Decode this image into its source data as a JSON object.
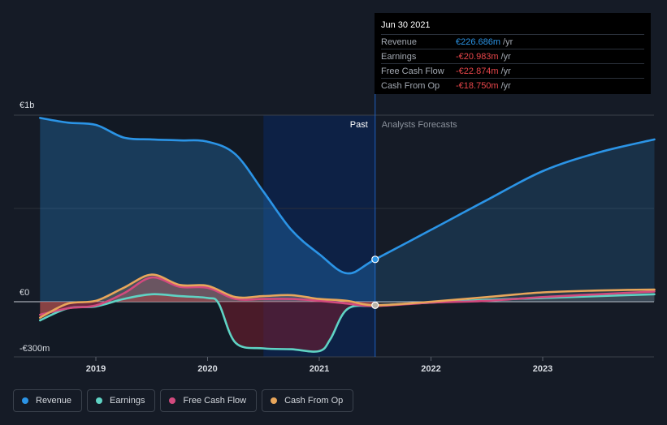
{
  "chart_data": {
    "type": "area",
    "y_unit": "€m",
    "y_tick_labels": [
      "€1b",
      "€0",
      "-€300m"
    ],
    "ylim": [
      -300,
      1000
    ],
    "x_tick_labels": [
      "2019",
      "2020",
      "2021",
      "2022",
      "2023"
    ],
    "xlim": [
      2018.5,
      2024.0
    ],
    "past_label": "Past",
    "forecast_label": "Analysts Forecasts",
    "past_end": 2021.5,
    "highlight_start": 2020.5,
    "series": [
      {
        "name": "Revenue",
        "color": "#2b94e6",
        "points": [
          [
            2018.5,
            985
          ],
          [
            2018.75,
            960
          ],
          [
            2019.0,
            948
          ],
          [
            2019.25,
            880
          ],
          [
            2019.5,
            870
          ],
          [
            2019.75,
            865
          ],
          [
            2020.0,
            858
          ],
          [
            2020.25,
            790
          ],
          [
            2020.5,
            590
          ],
          [
            2020.75,
            385
          ],
          [
            2021.0,
            255
          ],
          [
            2021.25,
            152
          ],
          [
            2021.5,
            227
          ],
          [
            2022.0,
            385
          ],
          [
            2022.5,
            545
          ],
          [
            2023.0,
            700
          ],
          [
            2023.5,
            800
          ],
          [
            2024.0,
            870
          ]
        ]
      },
      {
        "name": "Earnings",
        "color": "#5fd3c4",
        "points": [
          [
            2018.5,
            -100
          ],
          [
            2018.75,
            -35
          ],
          [
            2019.0,
            -25
          ],
          [
            2019.25,
            15
          ],
          [
            2019.5,
            40
          ],
          [
            2019.75,
            30
          ],
          [
            2020.0,
            20
          ],
          [
            2020.1,
            -10
          ],
          [
            2020.25,
            -220
          ],
          [
            2020.5,
            -250
          ],
          [
            2020.75,
            -255
          ],
          [
            2021.0,
            -265
          ],
          [
            2021.1,
            -200
          ],
          [
            2021.25,
            -40
          ],
          [
            2021.5,
            -21
          ],
          [
            2022.0,
            -5
          ],
          [
            2022.5,
            10
          ],
          [
            2023.0,
            20
          ],
          [
            2023.5,
            30
          ],
          [
            2024.0,
            40
          ]
        ]
      },
      {
        "name": "Free Cash Flow",
        "color": "#d24a7e",
        "points": [
          [
            2018.5,
            -70
          ],
          [
            2018.75,
            -35
          ],
          [
            2019.0,
            -20
          ],
          [
            2019.25,
            45
          ],
          [
            2019.5,
            130
          ],
          [
            2019.75,
            80
          ],
          [
            2020.0,
            75
          ],
          [
            2020.25,
            15
          ],
          [
            2020.5,
            15
          ],
          [
            2020.75,
            15
          ],
          [
            2021.0,
            5
          ],
          [
            2021.25,
            -10
          ],
          [
            2021.5,
            -23
          ],
          [
            2022.0,
            -5
          ],
          [
            2022.5,
            5
          ],
          [
            2023.0,
            25
          ],
          [
            2023.5,
            40
          ],
          [
            2024.0,
            55
          ]
        ]
      },
      {
        "name": "Cash From Op",
        "color": "#e8a65b",
        "points": [
          [
            2018.5,
            -85
          ],
          [
            2018.75,
            -10
          ],
          [
            2019.0,
            5
          ],
          [
            2019.25,
            75
          ],
          [
            2019.5,
            145
          ],
          [
            2019.75,
            90
          ],
          [
            2020.0,
            85
          ],
          [
            2020.25,
            25
          ],
          [
            2020.5,
            30
          ],
          [
            2020.75,
            35
          ],
          [
            2021.0,
            15
          ],
          [
            2021.25,
            5
          ],
          [
            2021.5,
            -19
          ],
          [
            2022.0,
            0
          ],
          [
            2022.5,
            25
          ],
          [
            2023.0,
            50
          ],
          [
            2023.5,
            60
          ],
          [
            2024.0,
            65
          ]
        ]
      }
    ]
  },
  "tooltip": {
    "date": "Jun 30 2021",
    "rows": [
      {
        "label": "Revenue",
        "value": "€226.686m",
        "unit": "/yr",
        "color": "#2b94e6"
      },
      {
        "label": "Earnings",
        "value": "-€20.983m",
        "unit": "/yr",
        "color": "#e8464a"
      },
      {
        "label": "Free Cash Flow",
        "value": "-€22.874m",
        "unit": "/yr",
        "color": "#e8464a"
      },
      {
        "label": "Cash From Op",
        "value": "-€18.750m",
        "unit": "/yr",
        "color": "#e8464a"
      }
    ]
  },
  "legend": [
    {
      "label": "Revenue",
      "color": "#2b94e6"
    },
    {
      "label": "Earnings",
      "color": "#5fd3c4"
    },
    {
      "label": "Free Cash Flow",
      "color": "#d24a7e"
    },
    {
      "label": "Cash From Op",
      "color": "#e8a65b"
    }
  ]
}
